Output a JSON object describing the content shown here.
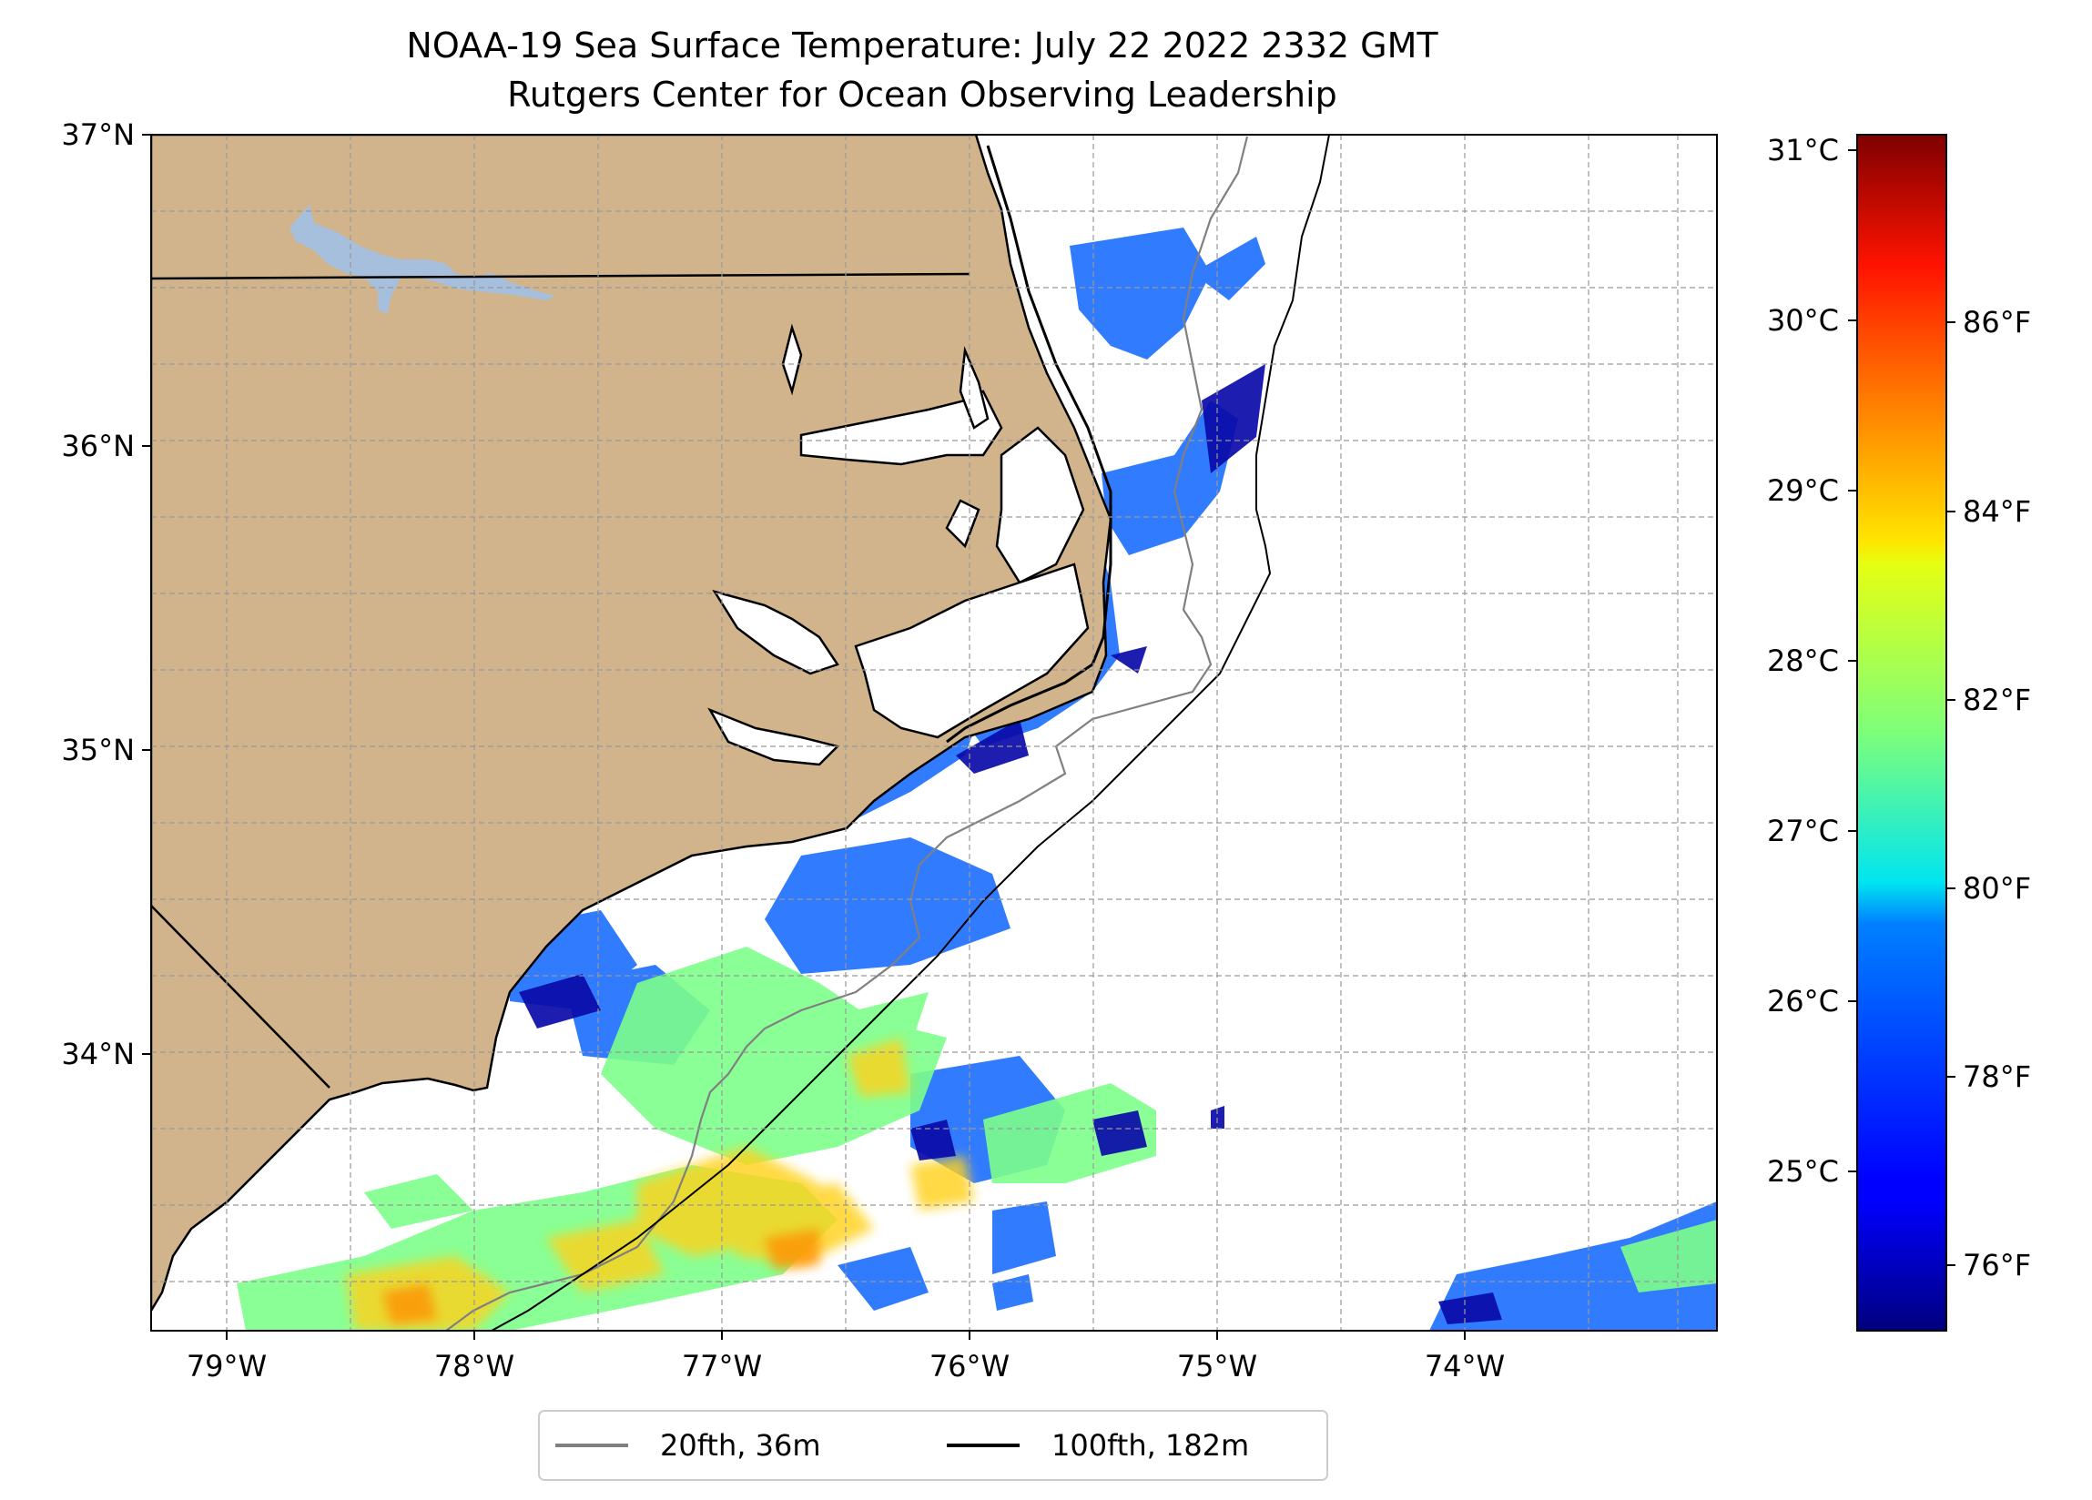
{
  "title": {
    "line1": "NOAA-19 Sea Surface Temperature: July 22 2022 2332 GMT",
    "line2": "Rutgers Center for Ocean Observing Leadership"
  },
  "map": {
    "extent": {
      "lon": [
        -79.3,
        -73.0
      ],
      "lat": [
        33.1,
        37.0
      ]
    },
    "lat_ticks": [
      "37°N",
      "36°N",
      "35°N",
      "34°N"
    ],
    "lon_ticks": [
      "79°W",
      "78°W",
      "77°W",
      "76°W",
      "75°W",
      "74°W"
    ],
    "land_color": "#d2b48c",
    "lake_color": "#a5bfdd",
    "gridlines": true
  },
  "colorbar": {
    "colormap": "jet",
    "celsius_ticks": [
      "31°C",
      "30°C",
      "29°C",
      "28°C",
      "27°C",
      "26°C",
      "25°C"
    ],
    "fahrenheit_ticks": [
      "86°F",
      "84°F",
      "82°F",
      "80°F",
      "78°F",
      "76°F"
    ]
  },
  "legend": {
    "items": [
      {
        "label": "20fth, 36m",
        "color": "#808080"
      },
      {
        "label": "100fth, 182m",
        "color": "#000000"
      }
    ]
  }
}
